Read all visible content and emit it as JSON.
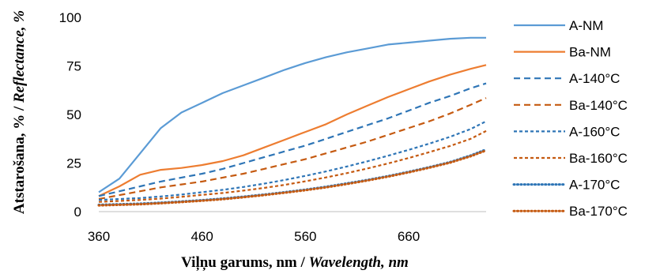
{
  "chart_data": {
    "type": "line",
    "xlabel_plain": "Viļņu garums, nm / ",
    "xlabel_italic": "Wavelength, nm",
    "ylabel_plain": "Atstarošana, % / ",
    "ylabel_italic": "Reflectance, %",
    "xlim": [
      360,
      735
    ],
    "ylim": [
      0,
      100
    ],
    "x_ticks": [
      360,
      460,
      560,
      660
    ],
    "y_ticks": [
      0,
      25,
      50,
      75,
      100
    ],
    "legend_position": "right",
    "grid": false,
    "x": [
      360,
      380,
      400,
      420,
      440,
      460,
      480,
      500,
      520,
      540,
      560,
      580,
      600,
      620,
      640,
      660,
      680,
      700,
      720,
      735
    ],
    "series": [
      {
        "name": "A-NM",
        "color": "#5b9bd5",
        "dash": "solid",
        "values": [
          10,
          17,
          30,
          43,
          51,
          56,
          61,
          65,
          69,
          73,
          76.5,
          79.5,
          82,
          84,
          86,
          87,
          88,
          89,
          89.5,
          89.5
        ]
      },
      {
        "name": "Ba-NM",
        "color": "#ed7d31",
        "dash": "solid",
        "values": [
          8,
          13,
          19,
          21.5,
          22.5,
          24,
          26,
          29,
          33,
          37,
          41,
          45,
          50,
          54.5,
          59,
          63,
          67,
          70.5,
          73.5,
          75.5
        ]
      },
      {
        "name": "A-140°C",
        "color": "#2e75b6",
        "dash": "dash",
        "values": [
          8,
          10.5,
          13,
          15.5,
          17.5,
          19.5,
          22,
          25,
          28,
          31,
          34,
          37.5,
          41,
          44.5,
          48,
          52,
          56,
          59.5,
          63.5,
          66
        ]
      },
      {
        "name": "Ba-140°C",
        "color": "#c55a11",
        "dash": "dash",
        "values": [
          6.5,
          8.5,
          10.5,
          12.5,
          14,
          15.5,
          17.5,
          19.5,
          22,
          24.5,
          27,
          30,
          33,
          36,
          39.5,
          43,
          46.5,
          50.5,
          55,
          58.5
        ]
      },
      {
        "name": "A-160°C",
        "color": "#2e75b6",
        "dash": "smalldash",
        "values": [
          6,
          6.5,
          7,
          7.8,
          8.8,
          10,
          11.2,
          12.7,
          14.4,
          16.3,
          18.4,
          20.7,
          23.2,
          25.9,
          28.8,
          31.8,
          35,
          38.5,
          42.5,
          46.5
        ]
      },
      {
        "name": "Ba-160°C",
        "color": "#c55a11",
        "dash": "smalldash",
        "values": [
          5,
          5.5,
          6,
          6.7,
          7.6,
          8.6,
          9.6,
          10.8,
          12.2,
          13.8,
          15.6,
          17.6,
          19.8,
          22.2,
          24.8,
          27.6,
          30.6,
          33.8,
          37.5,
          41.5
        ]
      },
      {
        "name": "A-170°C",
        "color": "#2e75b6",
        "dash": "dot",
        "values": [
          3.5,
          3.8,
          4.1,
          4.6,
          5.2,
          5.9,
          6.7,
          7.7,
          8.8,
          10,
          11.3,
          12.8,
          14.5,
          16.3,
          18.3,
          20.5,
          22.9,
          25.5,
          28.9,
          32
        ]
      },
      {
        "name": "Ba-170°C",
        "color": "#c55a11",
        "dash": "dot",
        "values": [
          3.2,
          3.5,
          3.8,
          4.3,
          4.9,
          5.6,
          6.4,
          7.4,
          8.5,
          9.7,
          11,
          12.5,
          14.2,
          16,
          18,
          20.2,
          22.6,
          25.2,
          28.5,
          31.5
        ]
      }
    ]
  }
}
